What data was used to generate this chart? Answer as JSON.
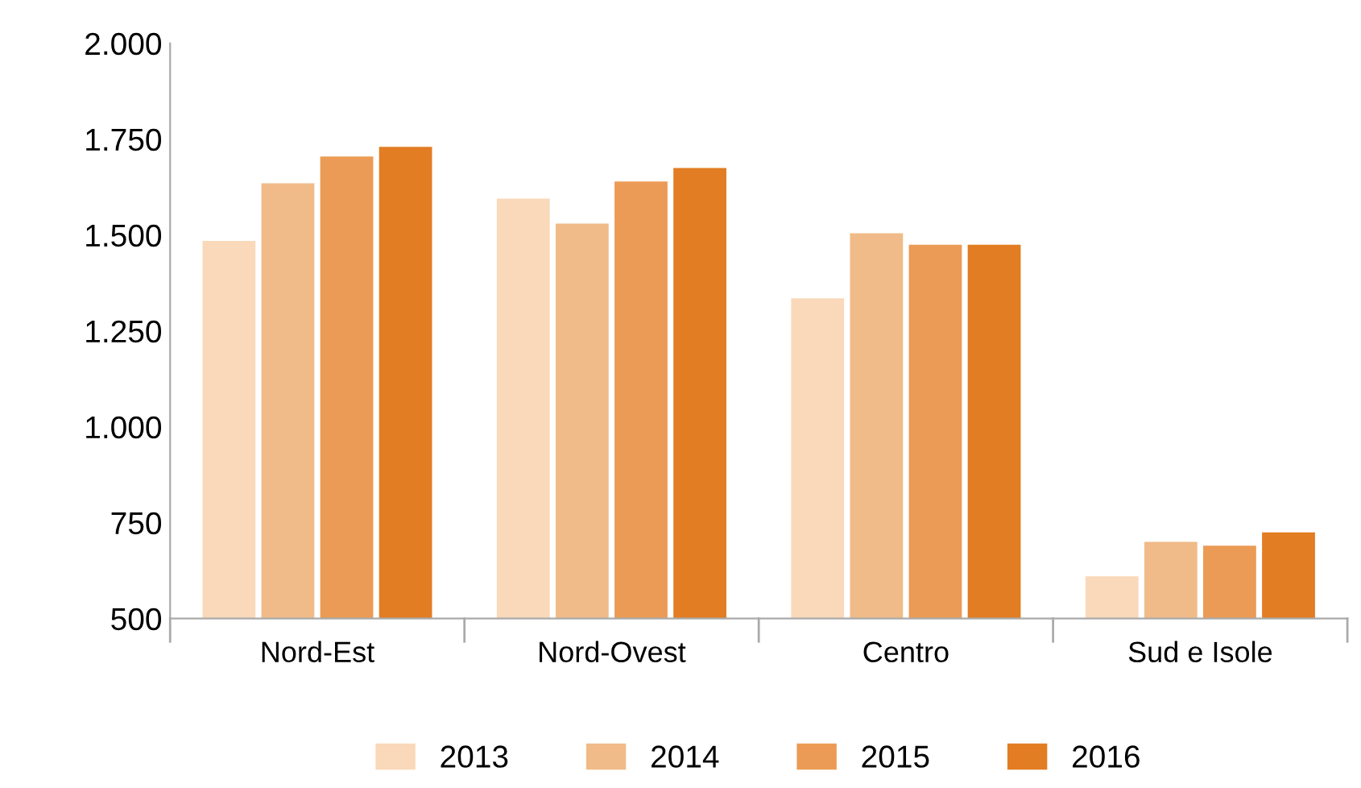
{
  "chart_data": {
    "type": "bar",
    "categories": [
      "Nord-Est",
      "Nord-Ovest",
      "Centro",
      "Sud e Isole"
    ],
    "series": [
      {
        "name": "2013",
        "color": "#f9d9b9",
        "values": [
          1485,
          1595,
          1335,
          610
        ]
      },
      {
        "name": "2014",
        "color": "#f0bb88",
        "values": [
          1635,
          1530,
          1505,
          700
        ]
      },
      {
        "name": "2015",
        "color": "#eb9b55",
        "values": [
          1705,
          1640,
          1475,
          690
        ]
      },
      {
        "name": "2016",
        "color": "#e27d23",
        "values": [
          1730,
          1675,
          1475,
          725
        ]
      }
    ],
    "ylim": [
      500,
      2000
    ],
    "yticks": [
      {
        "value": 500,
        "label": "500"
      },
      {
        "value": 750,
        "label": "750"
      },
      {
        "value": 1000,
        "label": "1.000"
      },
      {
        "value": 1250,
        "label": "1.250"
      },
      {
        "value": 1500,
        "label": "1.500"
      },
      {
        "value": 1750,
        "label": "1.750"
      },
      {
        "value": 2000,
        "label": "2.000"
      }
    ],
    "grid": false,
    "legend": "bottom"
  }
}
